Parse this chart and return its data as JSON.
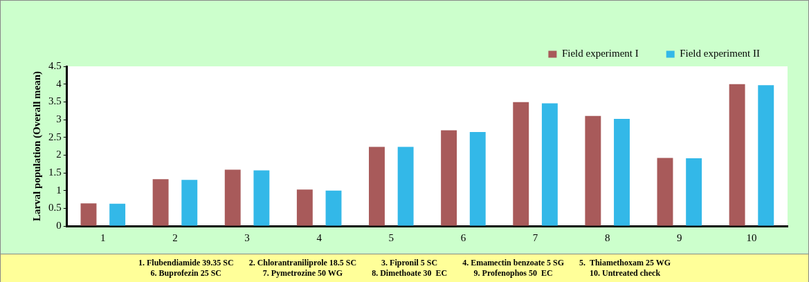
{
  "chart_data": {
    "type": "bar",
    "ylabel": "Larval population (Overall mean)",
    "categories": [
      "1",
      "2",
      "3",
      "4",
      "5",
      "6",
      "7",
      "8",
      "9",
      "10"
    ],
    "series": [
      {
        "name": "Field experiment I",
        "color": "#a85a5a",
        "values": [
          0.64,
          1.32,
          1.59,
          1.03,
          2.23,
          2.7,
          3.49,
          3.1,
          1.92,
          4.0
        ]
      },
      {
        "name": "Field experiment II",
        "color": "#33b8e8",
        "values": [
          0.63,
          1.3,
          1.57,
          1.0,
          2.23,
          2.65,
          3.46,
          3.02,
          1.91,
          3.97
        ]
      }
    ],
    "ylim": [
      0,
      4.5
    ],
    "yticks": [
      0,
      0.5,
      1,
      1.5,
      2,
      2.5,
      3,
      3.5,
      4,
      4.5
    ],
    "grid": false,
    "legend": "top right",
    "annotations": [
      "1. Flubendiamide 39.35 SC",
      "2. Chlorantraniliprole 18.5 SC",
      "3. Fipronil 5 SC",
      "4. Emamectin benzoate 5 SG",
      "5.  Thiamethoxam 25 WG",
      "6. Buprofezin 25 SC",
      "7. Pymetrozine 50 WG",
      "8. Dimethoate 30  EC",
      "9. Profenophos 50  EC",
      "10. Untreated check"
    ]
  }
}
